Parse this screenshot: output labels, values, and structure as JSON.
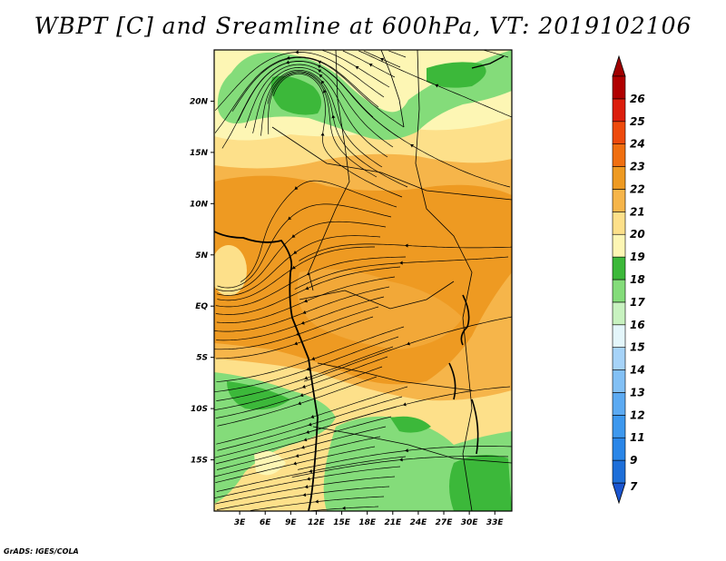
{
  "title": "WBPT [C] and Sreamline at 600hPa, VT: 2019102106",
  "footer": "GrADS: IGES/COLA",
  "map": {
    "lon_range": [
      0,
      35
    ],
    "lat_range": [
      -20,
      25
    ],
    "x_ticks": [
      {
        "value": 3,
        "label": "3E"
      },
      {
        "value": 6,
        "label": "6E"
      },
      {
        "value": 9,
        "label": "9E"
      },
      {
        "value": 12,
        "label": "12E"
      },
      {
        "value": 15,
        "label": "15E"
      },
      {
        "value": 18,
        "label": "18E"
      },
      {
        "value": 21,
        "label": "21E"
      },
      {
        "value": 24,
        "label": "24E"
      },
      {
        "value": 27,
        "label": "27E"
      },
      {
        "value": 30,
        "label": "30E"
      },
      {
        "value": 33,
        "label": "33E"
      }
    ],
    "y_ticks": [
      {
        "value": 20,
        "label": "20N"
      },
      {
        "value": 15,
        "label": "15N"
      },
      {
        "value": 10,
        "label": "10N"
      },
      {
        "value": 5,
        "label": "5N"
      },
      {
        "value": 0,
        "label": "EQ"
      },
      {
        "value": -5,
        "label": "5S"
      },
      {
        "value": -10,
        "label": "10S"
      },
      {
        "value": -15,
        "label": "15S"
      }
    ]
  },
  "colorbar": {
    "levels": [
      {
        "label": "7",
        "color": "#1e6fd9"
      },
      {
        "label": "9",
        "color": "#2a86e8"
      },
      {
        "label": "11",
        "color": "#3d98ee"
      },
      {
        "label": "12",
        "color": "#5caaf2"
      },
      {
        "label": "13",
        "color": "#82c0f5"
      },
      {
        "label": "14",
        "color": "#a6d3f8"
      },
      {
        "label": "15",
        "color": "#e4f6fb"
      },
      {
        "label": "16",
        "color": "#c8f2c0"
      },
      {
        "label": "17",
        "color": "#84dc7a"
      },
      {
        "label": "18",
        "color": "#3cb83a"
      },
      {
        "label": "19",
        "color": "#fdf6b4"
      },
      {
        "label": "20",
        "color": "#fde08a"
      },
      {
        "label": "21",
        "color": "#f6b54a"
      },
      {
        "label": "22",
        "color": "#ee9a22"
      },
      {
        "label": "23",
        "color": "#f06f10"
      },
      {
        "label": "24",
        "color": "#ee4a0c"
      },
      {
        "label": "25",
        "color": "#dc1e0c"
      },
      {
        "label": "26",
        "color": "#b00000"
      }
    ],
    "low_arrow_color": "#1a55d0",
    "high_arrow_color": "#a00000"
  },
  "fields": {
    "green_color": "#84dc7a",
    "dark_green_color": "#3cb83a",
    "light_yellow_color": "#fdf6b4",
    "yellow_color": "#fde08a",
    "orange_color": "#f6b54a",
    "dark_orange_color": "#ee9a22"
  }
}
